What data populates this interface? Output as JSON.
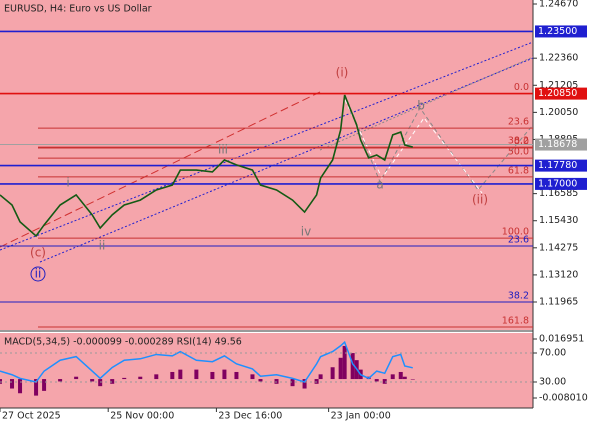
{
  "chart_data": {
    "type": "line",
    "title": "EURUSD, H4:  Euro vs US Dollar",
    "x": [
      0,
      3,
      5,
      9,
      11,
      15,
      19,
      23,
      25,
      28,
      31,
      35,
      39,
      43,
      45,
      49,
      53,
      56,
      59,
      63,
      65,
      69,
      73,
      76,
      79,
      80,
      83,
      85,
      86,
      88,
      89,
      90,
      92,
      94,
      96,
      98,
      100,
      101,
      103
    ],
    "values": [
      1.1653,
      1.161,
      1.1538,
      1.1478,
      1.1525,
      1.161,
      1.1653,
      1.1568,
      1.1512,
      1.1568,
      1.161,
      1.1631,
      1.1674,
      1.1695,
      1.1759,
      1.1759,
      1.1751,
      1.1802,
      1.1781,
      1.1759,
      1.1695,
      1.1674,
      1.1631,
      1.158,
      1.1653,
      1.1725,
      1.1802,
      1.193,
      1.2079,
      1.1994,
      1.1951,
      1.1887,
      1.1811,
      1.1823,
      1.1802,
      1.1909,
      1.1921,
      1.1866,
      1.1857
    ],
    "color": "#145a14",
    "xlim": [
      0,
      133
    ],
    "xticks": [
      {
        "value": 0,
        "label": "27 Oct 2025"
      },
      {
        "value": 27,
        "label": "25 Nov 00:00"
      },
      {
        "value": 54,
        "label": "23 Dec 16:00"
      },
      {
        "value": 82,
        "label": "23 Jan 00:00"
      }
    ],
    "ylim": [
      1.10771,
      1.24841
    ],
    "yticks": [
      {
        "value": 1.2467,
        "label": "1.24670"
      },
      {
        "value": 1.2236,
        "label": "1.22360"
      },
      {
        "value": 1.21205,
        "label": "1.21205"
      },
      {
        "value": 1.2005,
        "label": "1.20050"
      },
      {
        "value": 1.18895,
        "label": "1.18895"
      },
      {
        "value": 1.16585,
        "label": "1.16585"
      },
      {
        "value": 1.1543,
        "label": "1.15430"
      },
      {
        "value": 1.14275,
        "label": "1.14275"
      },
      {
        "value": 1.1312,
        "label": "1.13120"
      },
      {
        "value": 1.11965,
        "label": "1.11965"
      }
    ],
    "price_levels": [
      {
        "value": 1.235,
        "label": "1.23500",
        "color": "#1f1fd0"
      },
      {
        "value": 1.2085,
        "label": "1.20850",
        "color": "#e01010"
      },
      {
        "value": 1.18678,
        "label": "1.18678",
        "color": "#a0a0a0"
      },
      {
        "value": 1.1778,
        "label": "1.17780",
        "color": "#1f1fd0"
      },
      {
        "value": 1.17,
        "label": "1.17000",
        "color": "#1f1fd0"
      }
    ],
    "fib_levels": [
      {
        "label": "23.6",
        "value": 1.1938,
        "color": "#c83232"
      },
      {
        "label": "38.2",
        "value": 1.1857,
        "color": "#c83232"
      },
      {
        "label": "0.0",
        "value": 1.1853,
        "color": "#c83232"
      },
      {
        "label": "50.0",
        "value": 1.181,
        "color": "#c83232"
      },
      {
        "label": "61.8",
        "value": 1.173,
        "color": "#c83232"
      },
      {
        "label": "100.0",
        "value": 1.1469,
        "color": "#c83232"
      },
      {
        "label": "161.8",
        "value": 1.109,
        "color": "#c83232"
      },
      {
        "label": "0.0",
        "value": 1.2085,
        "color": "#c83232"
      },
      {
        "label": "23.6",
        "value": 1.1435,
        "color": "#2020c0"
      },
      {
        "label": "38.2",
        "value": 1.11965,
        "color": "#2020c0"
      }
    ],
    "wave_labels": [
      "(i)",
      "b",
      "a",
      "(ii)",
      "iii",
      "iv",
      "ii",
      "i",
      "(c)",
      "ii"
    ],
    "indicator": {
      "title": "MACD(5,34,5) -0.000099 -0.000289 RSI(14) 49.56",
      "histogram": {
        "color": "#800060",
        "ylim": [
          -0.012241,
          0.019489
        ],
        "values": [
          -0.002,
          -0.004,
          -0.006,
          -0.007,
          -0.005,
          -0.001,
          0.001,
          -0.001,
          -0.003,
          -0.002,
          0.0005,
          0.001,
          0.002,
          0.003,
          0.004,
          0.004,
          0.003,
          0.004,
          0.003,
          0.002,
          -0.001,
          -0.002,
          -0.003,
          -0.004,
          -0.002,
          0.002,
          0.005,
          0.009,
          0.014,
          0.011,
          0.008,
          0.004,
          0.001,
          -0.001,
          -0.002,
          0.002,
          0.003,
          0.001,
          -9.9e-05
        ],
        "yticks": [
          0.016951,
          {
            "value": -0.00801,
            "label": "-0.008010"
          }
        ]
      },
      "rsi": {
        "color": "#1e90ff",
        "ylim": [
          -5.9,
          97.6
        ],
        "values": [
          45,
          40,
          35,
          30,
          45,
          60,
          65,
          45,
          35,
          50,
          60,
          62,
          68,
          66,
          72,
          60,
          58,
          66,
          55,
          48,
          38,
          40,
          35,
          30,
          55,
          65,
          72,
          80,
          85,
          55,
          48,
          40,
          35,
          45,
          42,
          65,
          68,
          52,
          49.56
        ],
        "yticks": [
          {
            "value": 70,
            "label": "70.00"
          },
          {
            "value": 30,
            "label": "30.00"
          }
        ]
      }
    }
  }
}
